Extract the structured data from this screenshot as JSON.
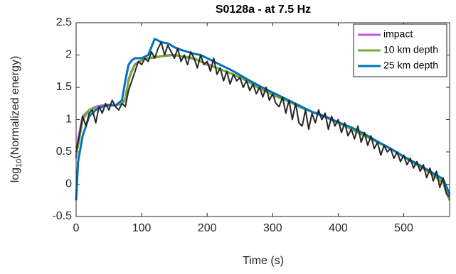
{
  "chart_data": {
    "type": "line",
    "title": "S0128a - at 7.5 Hz",
    "xlabel": "Time (s)",
    "ylabel": [
      "log",
      "10",
      "(Normalized energy)"
    ],
    "xlim": [
      0,
      570
    ],
    "xticks": [
      0,
      100,
      200,
      300,
      400,
      500
    ],
    "ylim": [
      -0.5,
      2.5
    ],
    "yticks": [
      -0.5,
      0,
      0.5,
      1,
      1.5,
      2,
      2.5
    ],
    "legend": "upper right",
    "series": [
      {
        "name": "impact",
        "color": "#c054f0",
        "x": [
          0,
          3,
          10,
          20,
          30,
          40,
          50,
          60,
          70,
          75,
          80,
          85,
          90,
          100,
          110,
          120,
          130,
          140,
          150,
          160,
          170,
          180,
          190,
          200,
          220,
          240,
          260,
          280,
          300,
          320,
          340,
          360,
          380,
          400,
          420,
          440,
          460,
          480,
          500,
          520,
          540,
          560,
          570
        ],
        "values": [
          0.4,
          0.7,
          1.05,
          1.15,
          1.2,
          1.22,
          1.23,
          1.22,
          1.25,
          1.32,
          1.62,
          1.76,
          1.86,
          1.92,
          1.95,
          1.96,
          1.98,
          1.99,
          2.0,
          1.98,
          1.96,
          1.94,
          1.9,
          1.86,
          1.78,
          1.7,
          1.6,
          1.49,
          1.38,
          1.3,
          1.21,
          1.12,
          1.04,
          0.95,
          0.86,
          0.76,
          0.65,
          0.55,
          0.43,
          0.31,
          0.18,
          0.03,
          -0.18
        ]
      },
      {
        "name": "10 km depth",
        "color": "#77ac30",
        "x": [
          0,
          3,
          10,
          20,
          30,
          40,
          50,
          60,
          70,
          75,
          80,
          85,
          90,
          100,
          110,
          120,
          130,
          140,
          150,
          160,
          170,
          180,
          190,
          200,
          220,
          240,
          260,
          280,
          300,
          320,
          340,
          360,
          380,
          400,
          420,
          440,
          460,
          480,
          500,
          520,
          540,
          560,
          570
        ],
        "values": [
          0.45,
          0.6,
          1.0,
          1.15,
          1.18,
          1.2,
          1.22,
          1.22,
          1.25,
          1.3,
          1.6,
          1.75,
          1.85,
          1.92,
          1.95,
          1.97,
          1.98,
          2.0,
          2.0,
          1.98,
          1.97,
          1.95,
          1.9,
          1.85,
          1.78,
          1.7,
          1.6,
          1.48,
          1.38,
          1.3,
          1.2,
          1.12,
          1.05,
          0.95,
          0.85,
          0.75,
          0.65,
          0.55,
          0.42,
          0.3,
          0.18,
          0.02,
          -0.25
        ]
      },
      {
        "name": "25 km depth",
        "color": "#0072bd",
        "x": [
          0,
          3,
          10,
          20,
          30,
          40,
          50,
          60,
          70,
          75,
          80,
          85,
          90,
          100,
          110,
          120,
          130,
          140,
          150,
          160,
          170,
          180,
          190,
          200,
          220,
          240,
          260,
          280,
          300,
          320,
          340,
          360,
          380,
          400,
          420,
          440,
          460,
          480,
          500,
          520,
          540,
          560,
          570
        ],
        "values": [
          -0.25,
          0.35,
          0.75,
          1.05,
          1.15,
          1.2,
          1.22,
          1.22,
          1.3,
          1.6,
          1.85,
          1.92,
          1.95,
          1.95,
          2.0,
          2.25,
          2.2,
          2.18,
          2.12,
          2.08,
          2.05,
          2.02,
          2.0,
          1.95,
          1.85,
          1.75,
          1.63,
          1.52,
          1.42,
          1.32,
          1.22,
          1.12,
          1.05,
          0.96,
          0.88,
          0.78,
          0.66,
          0.55,
          0.43,
          0.32,
          0.2,
          0.08,
          -0.15
        ]
      },
      {
        "color": "#262626",
        "x": [
          0,
          5,
          10,
          15,
          20,
          25,
          30,
          35,
          40,
          45,
          50,
          55,
          60,
          65,
          70,
          75,
          80,
          85,
          90,
          95,
          100,
          105,
          110,
          115,
          120,
          125,
          130,
          135,
          140,
          145,
          150,
          155,
          160,
          165,
          170,
          175,
          180,
          185,
          190,
          195,
          200,
          205,
          210,
          215,
          220,
          225,
          230,
          235,
          240,
          245,
          250,
          255,
          260,
          265,
          270,
          275,
          280,
          285,
          290,
          295,
          300,
          305,
          310,
          315,
          320,
          325,
          330,
          335,
          340,
          345,
          350,
          355,
          360,
          365,
          370,
          375,
          380,
          385,
          390,
          395,
          400,
          405,
          410,
          415,
          420,
          425,
          430,
          435,
          440,
          445,
          450,
          455,
          460,
          465,
          470,
          475,
          480,
          485,
          490,
          495,
          500,
          505,
          510,
          515,
          520,
          525,
          530,
          535,
          540,
          545,
          550,
          555,
          560,
          565,
          570
        ],
        "values": [
          0.5,
          0.75,
          1.05,
          0.9,
          1.1,
          1.15,
          0.95,
          1.2,
          1.1,
          1.25,
          1.15,
          1.3,
          1.2,
          1.15,
          1.25,
          1.2,
          1.45,
          1.6,
          1.75,
          1.9,
          1.85,
          1.95,
          1.9,
          2.05,
          1.95,
          2.1,
          2.2,
          2.0,
          2.15,
          2.05,
          1.95,
          2.1,
          1.9,
          2.0,
          1.85,
          2.05,
          1.95,
          1.8,
          2.0,
          1.85,
          1.9,
          1.75,
          1.95,
          1.7,
          1.8,
          1.6,
          1.75,
          1.55,
          1.7,
          1.6,
          1.65,
          1.5,
          1.6,
          1.45,
          1.55,
          1.4,
          1.5,
          1.35,
          1.5,
          1.3,
          1.4,
          1.25,
          1.2,
          1.35,
          1.1,
          1.3,
          1.0,
          1.25,
          0.95,
          0.9,
          1.15,
          0.85,
          1.1,
          0.95,
          1.15,
          1.0,
          1.1,
          0.85,
          1.05,
          0.9,
          1.0,
          0.8,
          0.95,
          0.75,
          0.85,
          0.7,
          0.9,
          0.65,
          0.8,
          0.6,
          0.75,
          0.55,
          0.65,
          0.45,
          0.6,
          0.5,
          0.55,
          0.4,
          0.5,
          0.35,
          0.45,
          0.3,
          0.4,
          0.25,
          0.35,
          0.2,
          0.3,
          0.1,
          0.25,
          0.05,
          0.2,
          -0.05,
          0.1,
          -0.15,
          -0.2
        ]
      }
    ]
  }
}
